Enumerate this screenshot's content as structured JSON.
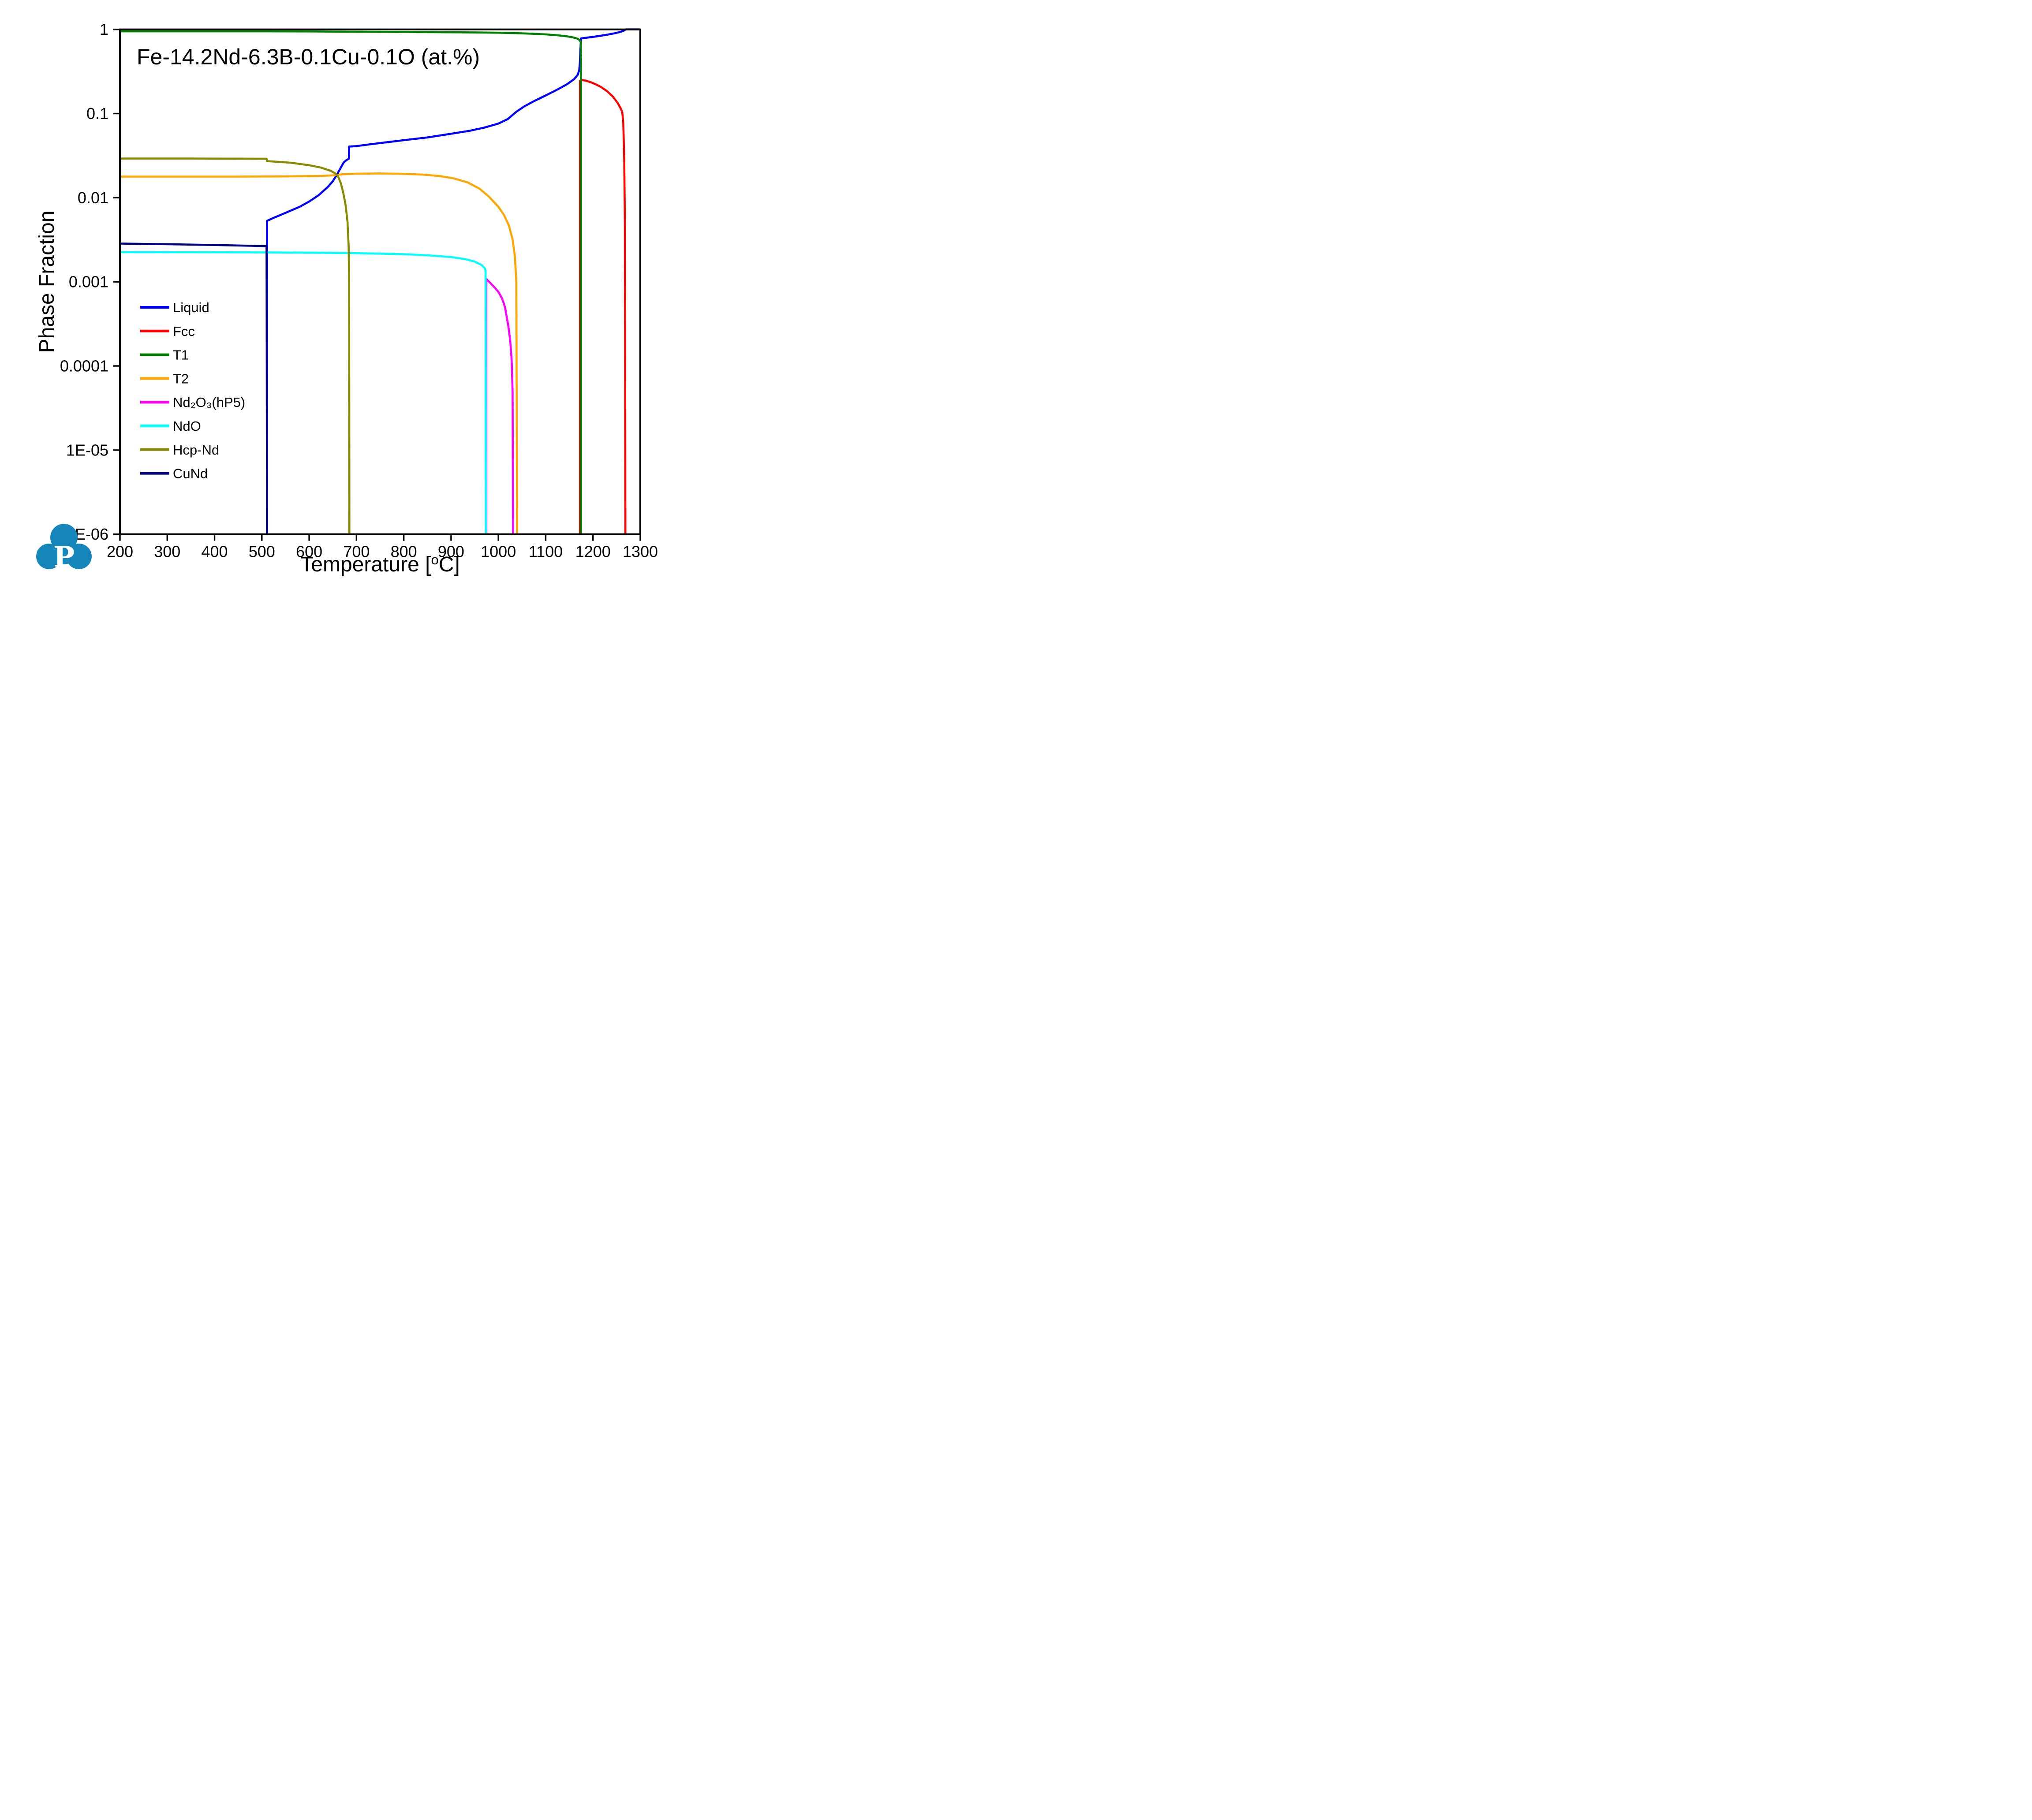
{
  "title": "Fe-14.2Nd-6.3B-0.1Cu-0.1O (at.%)",
  "logo": {
    "letter": "P",
    "color": "#1586b9"
  },
  "chart_data": {
    "type": "line",
    "title": "Fe-14.2Nd-6.3B-0.1Cu-0.1O (at.%)",
    "ylabel": "Phase Fraction",
    "xlabel_parts": {
      "pre": "Temperature [",
      "sup": "o",
      "post": "C]"
    },
    "grid": false,
    "legend_position": "inside-left-middle",
    "x_axis": {
      "min": 200,
      "max": 1300,
      "ticks": [
        200,
        300,
        400,
        500,
        600,
        700,
        800,
        900,
        1000,
        1100,
        1200,
        1300
      ]
    },
    "y_axis": {
      "scale": "log",
      "min": 1e-06,
      "max": 1,
      "tick_labels": [
        "1",
        "0.1",
        "0.01",
        "0.001",
        "0.0001",
        "1E-05",
        "1E-06"
      ],
      "tick_values": [
        1,
        0.1,
        0.01,
        0.001,
        0.0001,
        1e-05,
        1e-06
      ]
    },
    "series": [
      {
        "name": "Liquid",
        "color": "#0000ff",
        "points": [
          [
            511,
            1e-06
          ],
          [
            511,
            0.0053
          ],
          [
            520,
            0.0056
          ],
          [
            550,
            0.0066
          ],
          [
            580,
            0.0078
          ],
          [
            600,
            0.009
          ],
          [
            620,
            0.0107
          ],
          [
            640,
            0.0135
          ],
          [
            650,
            0.0157
          ],
          [
            658,
            0.0185
          ],
          [
            666,
            0.0223
          ],
          [
            673,
            0.0262
          ],
          [
            679,
            0.028
          ],
          [
            684,
            0.029
          ],
          [
            684.5,
            0.0405
          ],
          [
            700,
            0.041
          ],
          [
            730,
            0.0432
          ],
          [
            760,
            0.0453
          ],
          [
            800,
            0.0482
          ],
          [
            850,
            0.052
          ],
          [
            900,
            0.0575
          ],
          [
            940,
            0.0625
          ],
          [
            970,
            0.068
          ],
          [
            1000,
            0.076
          ],
          [
            1020,
            0.086
          ],
          [
            1038,
            0.105
          ],
          [
            1055,
            0.122
          ],
          [
            1075,
            0.14
          ],
          [
            1100,
            0.164
          ],
          [
            1125,
            0.193
          ],
          [
            1145,
            0.223
          ],
          [
            1160,
            0.256
          ],
          [
            1168,
            0.29
          ],
          [
            1171,
            0.33
          ],
          [
            1172.5,
            0.42
          ],
          [
            1173.5,
            0.58
          ],
          [
            1174.5,
            0.78
          ],
          [
            1185,
            0.795
          ],
          [
            1200,
            0.815
          ],
          [
            1215,
            0.838
          ],
          [
            1230,
            0.865
          ],
          [
            1245,
            0.898
          ],
          [
            1257,
            0.93
          ],
          [
            1264,
            0.96
          ],
          [
            1268,
            0.99
          ],
          [
            1270,
            1.0
          ],
          [
            1300,
            1.0
          ]
        ]
      },
      {
        "name": "Fcc",
        "color": "#ff0000",
        "points": [
          [
            1172.5,
            1e-06
          ],
          [
            1172.5,
            0.245
          ],
          [
            1176,
            0.25
          ],
          [
            1185,
            0.246
          ],
          [
            1195,
            0.236
          ],
          [
            1205,
            0.224
          ],
          [
            1218,
            0.205
          ],
          [
            1230,
            0.184
          ],
          [
            1242,
            0.159
          ],
          [
            1252,
            0.134
          ],
          [
            1259,
            0.114
          ],
          [
            1262,
            0.103
          ],
          [
            1264,
            0.078
          ],
          [
            1266,
            0.03
          ],
          [
            1267.5,
            0.005
          ],
          [
            1268.5,
            1e-06
          ]
        ]
      },
      {
        "name": "T1",
        "color": "#008000",
        "points": [
          [
            200,
            0.948
          ],
          [
            450,
            0.948
          ],
          [
            511,
            0.9478
          ],
          [
            600,
            0.9455
          ],
          [
            684,
            0.9405
          ],
          [
            686,
            0.94
          ],
          [
            800,
            0.933
          ],
          [
            900,
            0.925
          ],
          [
            950,
            0.92
          ],
          [
            1000,
            0.913
          ],
          [
            1038,
            0.903
          ],
          [
            1070,
            0.89
          ],
          [
            1100,
            0.873
          ],
          [
            1125,
            0.852
          ],
          [
            1145,
            0.827
          ],
          [
            1158,
            0.803
          ],
          [
            1166,
            0.78
          ],
          [
            1171,
            0.752
          ],
          [
            1173,
            0.725
          ],
          [
            1174.5,
            0.7
          ],
          [
            1174.5,
            1e-06
          ]
        ]
      },
      {
        "name": "T2",
        "color": "#ffa500",
        "points": [
          [
            200,
            0.0178
          ],
          [
            450,
            0.0178
          ],
          [
            550,
            0.0179
          ],
          [
            620,
            0.0181
          ],
          [
            650,
            0.0184
          ],
          [
            660,
            0.0187
          ],
          [
            672,
            0.019
          ],
          [
            700,
            0.0193
          ],
          [
            750,
            0.0194
          ],
          [
            800,
            0.0192
          ],
          [
            840,
            0.0188
          ],
          [
            875,
            0.0181
          ],
          [
            905,
            0.017
          ],
          [
            935,
            0.0152
          ],
          [
            960,
            0.0128
          ],
          [
            980,
            0.0103
          ],
          [
            1000,
            0.0078
          ],
          [
            1012,
            0.0062
          ],
          [
            1022,
            0.0047
          ],
          [
            1030,
            0.0032
          ],
          [
            1035,
            0.002
          ],
          [
            1038,
            0.001
          ],
          [
            1039.5,
            1e-06
          ]
        ]
      },
      {
        "name": "Nd₂O₃(hP5)",
        "color": "#ff00ff",
        "points": [
          [
            974.5,
            1e-06
          ],
          [
            974.5,
            0.00108
          ],
          [
            982,
            0.00098
          ],
          [
            990,
            0.00088
          ],
          [
            1000,
            0.00076
          ],
          [
            1008,
            0.00063
          ],
          [
            1014,
            0.0005
          ],
          [
            1017,
            0.0004
          ],
          [
            1021,
            0.0003
          ],
          [
            1025,
            0.0002
          ],
          [
            1028,
            0.00012
          ],
          [
            1030,
            5e-05
          ],
          [
            1031,
            1e-06
          ]
        ]
      },
      {
        "name": "NdO",
        "color": "#00ffff",
        "points": [
          [
            200,
            0.00225
          ],
          [
            500,
            0.00224
          ],
          [
            600,
            0.00222
          ],
          [
            700,
            0.00219
          ],
          [
            800,
            0.00213
          ],
          [
            850,
            0.00207
          ],
          [
            900,
            0.00197
          ],
          [
            930,
            0.00186
          ],
          [
            950,
            0.00174
          ],
          [
            965,
            0.00158
          ],
          [
            971,
            0.00145
          ],
          [
            973,
            0.00136
          ],
          [
            973.5,
            1e-06
          ]
        ]
      },
      {
        "name": "Hcp-Nd",
        "color": "#8a8a00",
        "points": [
          [
            200,
            0.0292
          ],
          [
            350,
            0.0292
          ],
          [
            450,
            0.0291
          ],
          [
            510,
            0.029
          ],
          [
            511,
            0.0272
          ],
          [
            560,
            0.0261
          ],
          [
            600,
            0.0243
          ],
          [
            625,
            0.0228
          ],
          [
            645,
            0.0209
          ],
          [
            656,
            0.0193
          ],
          [
            661,
            0.018
          ],
          [
            667,
            0.0148
          ],
          [
            672,
            0.0115
          ],
          [
            677,
            0.0082
          ],
          [
            681,
            0.0052
          ],
          [
            683.5,
            0.0026
          ],
          [
            684.5,
            0.001
          ],
          [
            685,
            1e-06
          ]
        ]
      },
      {
        "name": "CuNd",
        "color": "#000080",
        "points": [
          [
            200,
            0.00285
          ],
          [
            300,
            0.0028
          ],
          [
            400,
            0.00274
          ],
          [
            480,
            0.00268
          ],
          [
            510,
            0.00265
          ],
          [
            511,
            1e-06
          ]
        ]
      }
    ]
  }
}
